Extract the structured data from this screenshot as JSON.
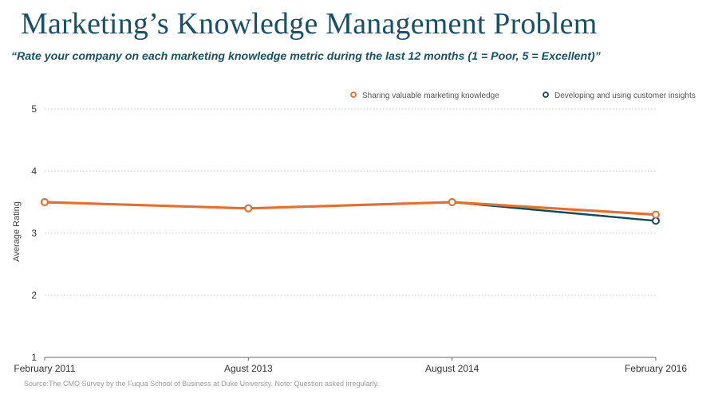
{
  "page": {
    "title": "Marketing’s Knowledge Management Problem",
    "subtitle": "“Rate your company on each marketing knowledge metric during the last 12 months (1 = Poor, 5 = Excellent)”",
    "source": "Source:The CMO Survey by the Fuqua School of Business at Duke University. Note: Question asked irregularly."
  },
  "colors": {
    "title": "#1b4f63",
    "sharing": "#e07033",
    "developing": "#124a5a",
    "grid": "#c9c9c9"
  },
  "chart_data": {
    "type": "line",
    "categories": [
      "February 2011",
      "Agust 2013",
      "August 2014",
      "February 2016"
    ],
    "series": [
      {
        "name": "Sharing valuable marketing knowledge",
        "values": [
          3.5,
          3.4,
          3.5,
          3.3
        ],
        "color": "#e07033"
      },
      {
        "name": "Developing and using customer insights",
        "values": [
          3.5,
          3.4,
          3.5,
          3.2
        ],
        "color": "#124a5a"
      }
    ],
    "ylabel": "Average Rating",
    "xlabel": "",
    "ylim": [
      1,
      5
    ],
    "yticks": [
      1,
      2,
      3,
      4,
      5
    ],
    "grid": true,
    "legend": "top-right"
  }
}
